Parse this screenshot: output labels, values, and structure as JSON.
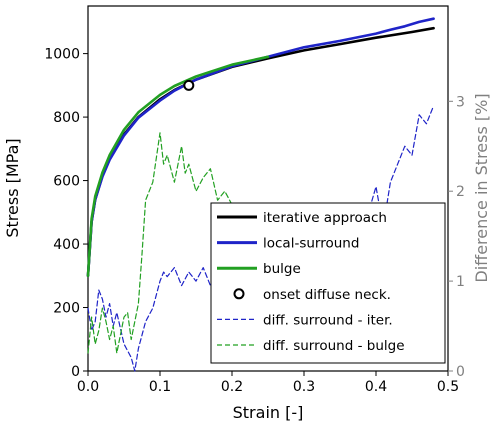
{
  "chart_data": {
    "type": "line",
    "xlabel": "Strain [-]",
    "ylabel": "Stress [MPa]",
    "y2label": "Difference in Stress [%]",
    "xlim": [
      0.0,
      0.5
    ],
    "ylim": [
      0,
      1150
    ],
    "y2lim": [
      0,
      4.06
    ],
    "xticks": [
      0.0,
      0.1,
      0.2,
      0.3,
      0.4,
      0.5
    ],
    "xtick_labels": [
      "0.0",
      "0.1",
      "0.2",
      "0.3",
      "0.4",
      "0.5"
    ],
    "yticks": [
      0,
      200,
      400,
      600,
      800,
      1000
    ],
    "ytick_labels": [
      "0",
      "200",
      "400",
      "600",
      "800",
      "1000"
    ],
    "y2ticks": [
      0,
      1,
      2,
      3
    ],
    "y2tick_labels": [
      "0",
      "1",
      "2",
      "3"
    ],
    "grid": false,
    "legend_position": "lower-right",
    "series": [
      {
        "name": "iterative approach",
        "axis": "left",
        "color": "#000000",
        "style": "solid",
        "x": [
          0.0,
          0.005,
          0.01,
          0.02,
          0.03,
          0.05,
          0.07,
          0.1,
          0.12,
          0.15,
          0.2,
          0.25,
          0.3,
          0.35,
          0.4,
          0.45,
          0.48
        ],
        "y": [
          300,
          470,
          540,
          615,
          668,
          745,
          800,
          856,
          885,
          918,
          958,
          985,
          1010,
          1030,
          1050,
          1068,
          1080
        ]
      },
      {
        "name": "local-surround",
        "axis": "left",
        "color": "#1f24c8",
        "style": "solid",
        "x": [
          0.0,
          0.005,
          0.01,
          0.02,
          0.03,
          0.05,
          0.07,
          0.1,
          0.12,
          0.15,
          0.2,
          0.25,
          0.3,
          0.35,
          0.4,
          0.42,
          0.44,
          0.46,
          0.48
        ],
        "y": [
          300,
          470,
          540,
          612,
          665,
          742,
          798,
          852,
          883,
          918,
          960,
          990,
          1020,
          1040,
          1063,
          1075,
          1086,
          1100,
          1110
        ]
      },
      {
        "name": "bulge",
        "axis": "left",
        "color": "#22a022",
        "style": "solid",
        "x": [
          0.0,
          0.005,
          0.01,
          0.02,
          0.03,
          0.05,
          0.07,
          0.1,
          0.12,
          0.15,
          0.2,
          0.25
        ],
        "y": [
          300,
          480,
          550,
          625,
          680,
          760,
          815,
          870,
          898,
          928,
          965,
          990
        ]
      },
      {
        "name": "onset diffuse neck.",
        "axis": "left",
        "type": "marker",
        "x": [
          0.14
        ],
        "y": [
          900
        ]
      },
      {
        "name": "diff. surround - iter.",
        "axis": "right",
        "color": "#1f24c8",
        "style": "dashed",
        "x": [
          0.0,
          0.005,
          0.01,
          0.015,
          0.02,
          0.025,
          0.03,
          0.035,
          0.04,
          0.05,
          0.06,
          0.065,
          0.07,
          0.08,
          0.09,
          0.1,
          0.105,
          0.11,
          0.12,
          0.13,
          0.14,
          0.15,
          0.16,
          0.17,
          0.18,
          0.19,
          0.2,
          0.22,
          0.24,
          0.26,
          0.28,
          0.3,
          0.32,
          0.34,
          0.36,
          0.38,
          0.4,
          0.41,
          0.42,
          0.43,
          0.44,
          0.45,
          0.46,
          0.47,
          0.48
        ],
        "y": [
          0.7,
          0.45,
          0.55,
          0.9,
          0.8,
          0.6,
          0.75,
          0.5,
          0.65,
          0.3,
          0.15,
          0.0,
          0.25,
          0.55,
          0.7,
          1.0,
          1.1,
          1.05,
          1.15,
          0.95,
          1.1,
          1.0,
          1.15,
          0.95,
          1.1,
          1.0,
          0.9,
          0.85,
          0.7,
          0.6,
          0.55,
          0.5,
          0.6,
          0.8,
          1.1,
          1.5,
          2.05,
          1.6,
          2.1,
          2.3,
          2.5,
          2.4,
          2.85,
          2.75,
          2.95
        ]
      },
      {
        "name": "diff. surround - bulge",
        "axis": "right",
        "color": "#22a022",
        "style": "dashed",
        "x": [
          0.0,
          0.005,
          0.01,
          0.015,
          0.02,
          0.025,
          0.03,
          0.035,
          0.04,
          0.05,
          0.055,
          0.06,
          0.07,
          0.075,
          0.08,
          0.09,
          0.1,
          0.105,
          0.11,
          0.12,
          0.13,
          0.135,
          0.14,
          0.15,
          0.16,
          0.17,
          0.18,
          0.19,
          0.2
        ],
        "y": [
          0.2,
          0.6,
          0.3,
          0.45,
          0.7,
          0.55,
          0.35,
          0.5,
          0.2,
          0.6,
          0.65,
          0.35,
          0.75,
          1.3,
          1.9,
          2.1,
          2.65,
          2.3,
          2.4,
          2.1,
          2.5,
          2.2,
          2.3,
          2.0,
          2.15,
          2.25,
          1.9,
          2.0,
          1.85
        ]
      }
    ]
  }
}
